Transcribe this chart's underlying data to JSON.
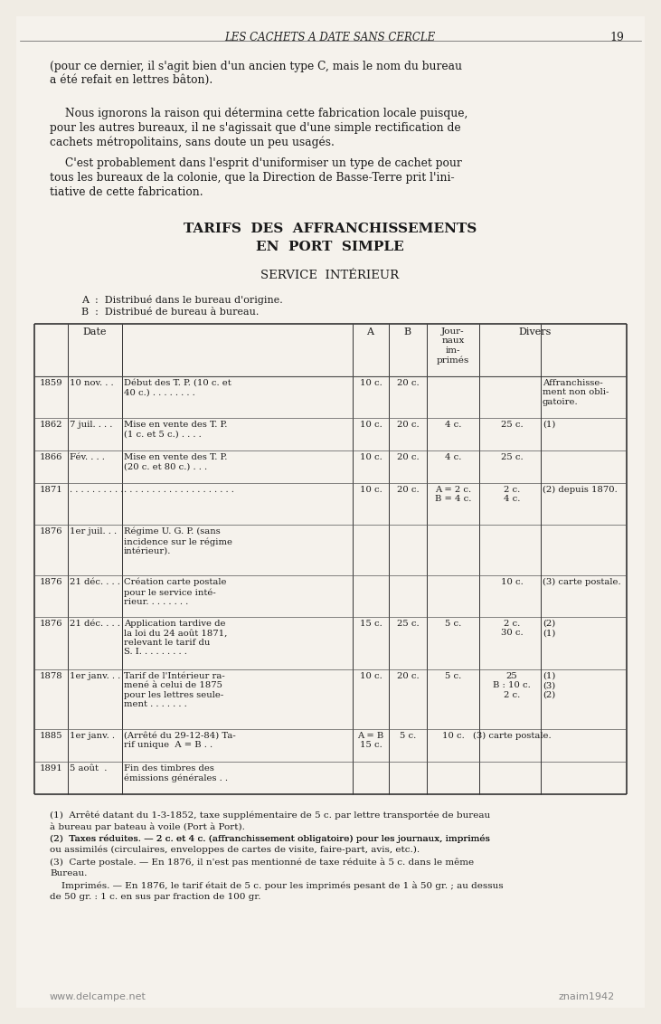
{
  "bg_color": "#f0ece4",
  "page_bg": "#f5f2ec",
  "header_text": "LES CACHETS A DATE SANS CERCLE",
  "page_number": "19",
  "para1": "(pour ce dernier, il s'agit bien d'un ancien type C, mais le nom du bureau\na été refait en lettres bâton).",
  "para2": "Nous ignorons la raison qui détermina cette fabrication locale puisque,\npour les autres bureaux, il ne s'agissait que d'une simple rectification de\ncachets métropolitains, sans doute un peu usagés.",
  "para3": "C'est probablement dans l'esprit d'uniformiser un type de cachet pour\ntous les bureaux de la colonie, que la Direction de Basse-Terre prit l'ini-\ntiative de cette fabrication.",
  "section_title1": "TARIFS  DES  AFFRANCHISSEMENTS",
  "section_title2": "EN  PORT  SIMPLE",
  "section_sub": "SERVICE  INTÉRIEUR",
  "legend_A": "A  :  Distribué dans le bureau d'origine.",
  "legend_B": "B  :  Distribué de bureau à bureau.",
  "table_headers": [
    "",
    "Date",
    "",
    "A",
    "B",
    "Jour-\nnaux\nim-\nprimés",
    "Divers",
    ""
  ],
  "rows": [
    [
      "1859",
      "10 nov. . .",
      "Début des T. P. (10 c. et\n40 c.) . . . . . . . .",
      "10 c.",
      "20 c.",
      "",
      "",
      "Affranchisse-\nment non obli-\ngatoire."
    ],
    [
      "1862",
      "7 juil. . . .",
      "Mise en vente des T. P.\n(1 c. et 5 c.) . . . .",
      "10 c.",
      "20 c.",
      "4 c.",
      "25 c.",
      "(1)"
    ],
    [
      "1866",
      "Fév. . . .",
      "Mise en vente des T. P.\n(20 c. et 80 c.) . . .",
      "10 c.",
      "20 c.",
      "4 c.",
      "25 c.",
      ""
    ],
    [
      "1871",
      ". . . . . . . . . .",
      ". . . . . . . . . . . . . . . . . .",
      "10 c.",
      "20 c.",
      "A = 2 c.\nB = 4 c.",
      "2 c.\n4 c.",
      "(2) depuis 1870."
    ],
    [
      "1876",
      "1er juil. . .",
      "Régime U. G. P. (sans\nincidence sur le régime\nintérieur).",
      "",
      "",
      "",
      "",
      ""
    ],
    [
      "1876",
      "21 déc. . . .",
      "Création carte postale\npour le service inté-\nrieur. . . . . . . .",
      "",
      "",
      "",
      "10 c.",
      "(3) carte postale."
    ],
    [
      "1876",
      "21 déc. . . .",
      "Application tardive de\nla loi du 24 août 1871,\nrelevant le tarif du\nS. I. . . . . . . . .",
      "15 c.",
      "25 c.",
      "5 c.",
      "2 c.\n30 c.",
      "(2)\n(1)"
    ],
    [
      "1878",
      "1er janv. . .",
      "Tarif de l'Intérieur ra-\nmené à celui de 1875\npour les lettres seule-\nment . . . . . . .",
      "10 c.",
      "20 c.",
      "5 c.",
      "25\nB : 10 c.\n2 c.",
      "(1)\n(3)\n(2)"
    ],
    [
      "1885",
      "1er janv. .",
      "(Arrêté du 29-12-84) Ta-\nrif unique A = B . .",
      "A = B\n15 c.",
      "5 c.",
      "10 c.",
      "(3) carte postale.",
      ""
    ],
    [
      "1891",
      "5 août  .",
      "Fin des timbres des\némissions générales . .",
      "",
      "",
      "",
      "",
      ""
    ]
  ],
  "footnote1": "(1)  Arrêté datant du 1-3-1852, taxe supplémentaire de 5 c. par lettre transportée de bureau\nà bureau par bateau à voile (Port à Port).",
  "footnote2": "(2)  Taxes réduites. — 2 c. et 4 c. (affranchissement obligatoire) pour les journaux, imprimés\nou assimilés (circulaires, enveloppes de cartes de visite, faire-part, avis, etc.).",
  "footnote3": "(3)  Carte postale. — En 1876, il n'est pas mentionné de taxe réduite à 5 c. dans le même\nBureau.",
  "footnote4": "Imprimés. — En 1876, le tarif était de 5 c. pour les imprimés pesant de 1 à 50 gr. ; au dessus\nde 50 gr. : 1 c. en sus par fraction de 100 gr.",
  "watermark_left": "www.delcampe.net",
  "watermark_right": "znaim1942"
}
